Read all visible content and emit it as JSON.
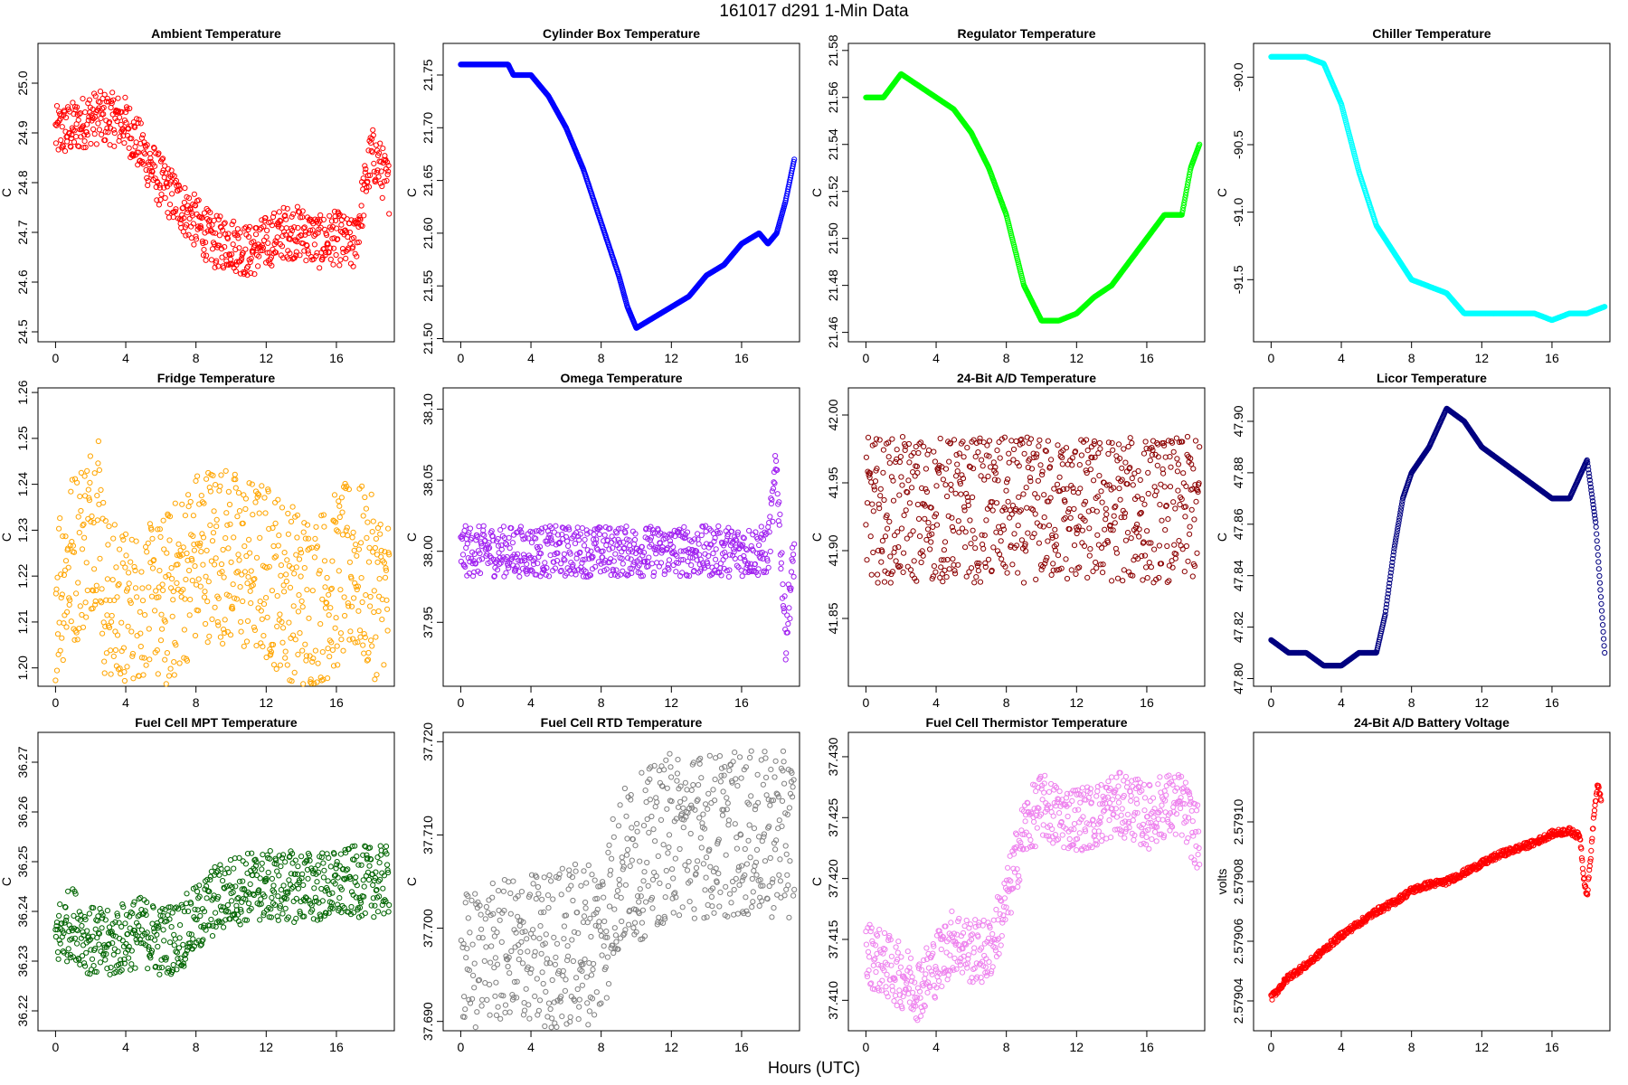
{
  "figure": {
    "title": "161017   d291   1-Min Data",
    "xlabel": "Hours (UTC)"
  },
  "chart_data": [
    {
      "type": "scatter",
      "title": "Ambient Temperature",
      "ylabel": "C",
      "color": "#ff0000",
      "xlim": [
        -1,
        19.3
      ],
      "ylim": [
        24.48,
        25.08
      ],
      "xticks": [
        0,
        4,
        8,
        12,
        16
      ],
      "xtick_labels": [
        "0",
        "4",
        "8",
        "12",
        "16"
      ],
      "yticks": [
        24.5,
        24.6,
        24.7,
        24.8,
        24.9,
        25.0
      ],
      "ytick_labels": [
        "24.5",
        "24.6",
        "24.7",
        "24.8",
        "24.9",
        "25.0"
      ],
      "series": [
        {
          "x": [
            0,
            1,
            2,
            3,
            4,
            5,
            6,
            7,
            8,
            9,
            10,
            11,
            12,
            13,
            14,
            15,
            16,
            17,
            18,
            18.5,
            19
          ],
          "y": [
            24.9,
            24.91,
            24.93,
            24.93,
            24.92,
            24.86,
            24.8,
            24.76,
            24.72,
            24.68,
            24.68,
            24.66,
            24.68,
            24.7,
            24.7,
            24.68,
            24.69,
            24.67,
            24.86,
            24.83,
            24.79
          ],
          "spread": 0.06
        }
      ]
    },
    {
      "type": "scatter",
      "title": "Cylinder Box Temperature",
      "ylabel": "C",
      "color": "#0000ff",
      "xlim": [
        -1,
        19.3
      ],
      "ylim": [
        21.497,
        21.78
      ],
      "xticks": [
        0,
        4,
        8,
        12,
        16
      ],
      "xtick_labels": [
        "0",
        "4",
        "8",
        "12",
        "16"
      ],
      "yticks": [
        21.5,
        21.55,
        21.6,
        21.65,
        21.7,
        21.75
      ],
      "ytick_labels": [
        "21.50",
        "21.55",
        "21.60",
        "21.65",
        "21.70",
        "21.75"
      ],
      "series": [
        {
          "x": [
            0,
            1,
            2,
            2.7,
            3,
            4,
            5,
            6,
            7,
            8,
            9,
            9.5,
            10,
            11,
            12,
            13,
            14,
            15,
            16,
            17,
            17.5,
            18,
            18.5,
            19
          ],
          "y": [
            21.76,
            21.76,
            21.76,
            21.76,
            21.75,
            21.75,
            21.73,
            21.7,
            21.66,
            21.61,
            21.56,
            21.53,
            21.51,
            21.52,
            21.53,
            21.54,
            21.56,
            21.57,
            21.59,
            21.6,
            21.59,
            21.6,
            21.63,
            21.67
          ],
          "spread": 0.0
        }
      ]
    },
    {
      "type": "scatter",
      "title": "Regulator Temperature",
      "ylabel": "C",
      "color": "#00ff00",
      "xlim": [
        -1,
        19.3
      ],
      "ylim": [
        21.456,
        21.583
      ],
      "xticks": [
        0,
        4,
        8,
        12,
        16
      ],
      "xtick_labels": [
        "0",
        "4",
        "8",
        "12",
        "16"
      ],
      "yticks": [
        21.46,
        21.48,
        21.5,
        21.52,
        21.54,
        21.56,
        21.58
      ],
      "ytick_labels": [
        "21.46",
        "21.48",
        "21.50",
        "21.52",
        "21.54",
        "21.56",
        "21.58"
      ],
      "series": [
        {
          "x": [
            0,
            1,
            2,
            3,
            4,
            5,
            6,
            7,
            8,
            9,
            10,
            11,
            12,
            13,
            14,
            15,
            16,
            17,
            18,
            18.5,
            19
          ],
          "y": [
            21.56,
            21.56,
            21.57,
            21.565,
            21.56,
            21.555,
            21.545,
            21.53,
            21.51,
            21.48,
            21.465,
            21.465,
            21.468,
            21.475,
            21.48,
            21.49,
            21.5,
            21.51,
            21.51,
            21.53,
            21.54
          ],
          "spread": 0.0
        }
      ]
    },
    {
      "type": "scatter",
      "title": "Chiller Temperature",
      "ylabel": "C",
      "color": "#00ffff",
      "xlim": [
        -1,
        19.3
      ],
      "ylim": [
        -91.96,
        -89.75
      ],
      "xticks": [
        0,
        4,
        8,
        12,
        16
      ],
      "xtick_labels": [
        "0",
        "4",
        "8",
        "12",
        "16"
      ],
      "yticks": [
        -91.5,
        -91.0,
        -90.5,
        -90.0
      ],
      "ytick_labels": [
        "-91.5",
        "-91.0",
        "-90.5",
        "-90.0"
      ],
      "series": [
        {
          "x": [
            0,
            1,
            2,
            3,
            4,
            5,
            6,
            7,
            8,
            9,
            10,
            11,
            12,
            13,
            14,
            15,
            16,
            17,
            18,
            19
          ],
          "y": [
            -89.85,
            -89.85,
            -89.85,
            -89.9,
            -90.2,
            -90.7,
            -91.1,
            -91.3,
            -91.5,
            -91.55,
            -91.6,
            -91.75,
            -91.75,
            -91.75,
            -91.75,
            -91.75,
            -91.8,
            -91.75,
            -91.75,
            -91.7
          ],
          "spread": 0.0
        }
      ]
    },
    {
      "type": "scatter",
      "title": "Fridge Temperature",
      "ylabel": "C",
      "color": "#ffa500",
      "xlim": [
        -1,
        19.3
      ],
      "ylim": [
        1.196,
        1.261
      ],
      "xticks": [
        0,
        4,
        8,
        12,
        16
      ],
      "xtick_labels": [
        "0",
        "4",
        "8",
        "12",
        "16"
      ],
      "yticks": [
        1.2,
        1.21,
        1.22,
        1.23,
        1.24,
        1.25,
        1.26
      ],
      "ytick_labels": [
        "1.20",
        "1.21",
        "1.22",
        "1.23",
        "1.24",
        "1.25",
        "1.26"
      ],
      "series": [
        {
          "x": [
            0,
            0.5,
            1,
            1.5,
            2,
            2.5,
            2.7,
            3,
            4,
            5,
            6,
            7,
            8,
            9,
            10,
            11,
            12,
            13,
            14,
            15,
            16,
            17,
            18,
            19
          ],
          "y": [
            1.217,
            1.221,
            1.224,
            1.227,
            1.231,
            1.236,
            1.22,
            1.213,
            1.211,
            1.211,
            1.213,
            1.218,
            1.224,
            1.226,
            1.224,
            1.222,
            1.221,
            1.218,
            1.215,
            1.215,
            1.219,
            1.222,
            1.218,
            1.214
          ],
          "spread": 0.022
        }
      ]
    },
    {
      "type": "scatter",
      "title": "Omega Temperature",
      "ylabel": "C",
      "color": "#a020f0",
      "xlim": [
        -1,
        19.3
      ],
      "ylim": [
        37.905,
        38.115
      ],
      "xticks": [
        0,
        4,
        8,
        12,
        16
      ],
      "xtick_labels": [
        "0",
        "4",
        "8",
        "12",
        "16"
      ],
      "yticks": [
        37.95,
        38.0,
        38.05,
        38.1
      ],
      "ytick_labels": [
        "37.95",
        "38.00",
        "38.05",
        "38.10"
      ],
      "series": [
        {
          "x": [
            0,
            2,
            4,
            6,
            8,
            10,
            12,
            14,
            16,
            17.5,
            18,
            18.5,
            19
          ],
          "y": [
            38.0,
            38.0,
            38.0,
            38.0,
            38.0,
            38.0,
            38.0,
            38.0,
            38.0,
            38.0,
            38.06,
            37.94,
            38.0
          ],
          "spread": 0.02
        }
      ]
    },
    {
      "type": "scatter",
      "title": "24-Bit A/D Temperature",
      "ylabel": "C",
      "color": "#8b0000",
      "xlim": [
        -1,
        19.3
      ],
      "ylim": [
        41.8,
        42.02
      ],
      "xticks": [
        0,
        4,
        8,
        12,
        16
      ],
      "xtick_labels": [
        "0",
        "4",
        "8",
        "12",
        "16"
      ],
      "yticks": [
        41.85,
        41.9,
        41.95,
        42.0
      ],
      "ytick_labels": [
        "41.85",
        "41.90",
        "41.95",
        "42.00"
      ],
      "series": [
        {
          "x": [
            0,
            4,
            8,
            12,
            16,
            18,
            19
          ],
          "y": [
            41.93,
            41.93,
            41.93,
            41.93,
            41.93,
            41.93,
            41.93
          ],
          "spread": 0.06
        }
      ]
    },
    {
      "type": "scatter",
      "title": "Licor Temperature",
      "ylabel": "C",
      "color": "#000080",
      "xlim": [
        -1,
        19.3
      ],
      "ylim": [
        47.797,
        47.913
      ],
      "xticks": [
        0,
        4,
        8,
        12,
        16
      ],
      "xtick_labels": [
        "0",
        "4",
        "8",
        "12",
        "16"
      ],
      "yticks": [
        47.8,
        47.82,
        47.84,
        47.86,
        47.88,
        47.9
      ],
      "ytick_labels": [
        "47.80",
        "47.82",
        "47.84",
        "47.86",
        "47.88",
        "47.90"
      ],
      "series": [
        {
          "x": [
            0,
            1,
            2,
            3,
            4,
            5,
            6,
            6.5,
            7,
            7.5,
            8,
            9,
            10,
            11,
            12,
            13,
            14,
            15,
            16,
            17,
            18,
            18.5,
            19
          ],
          "y": [
            47.815,
            47.81,
            47.81,
            47.805,
            47.805,
            47.81,
            47.81,
            47.825,
            47.85,
            47.87,
            47.88,
            47.89,
            47.905,
            47.9,
            47.89,
            47.885,
            47.88,
            47.875,
            47.87,
            47.87,
            47.885,
            47.86,
            47.81
          ],
          "spread": 0.0
        }
      ]
    },
    {
      "type": "scatter",
      "title": "Fuel Cell MPT Temperature",
      "ylabel": "C",
      "color": "#006400",
      "xlim": [
        -1,
        19.3
      ],
      "ylim": [
        36.216,
        36.276
      ],
      "xticks": [
        0,
        4,
        8,
        12,
        16
      ],
      "xtick_labels": [
        "0",
        "4",
        "8",
        "12",
        "16"
      ],
      "yticks": [
        36.22,
        36.23,
        36.24,
        36.25,
        36.26,
        36.27
      ],
      "ytick_labels": [
        "36.22",
        "36.23",
        "36.24",
        "36.25",
        "36.26",
        "36.27"
      ],
      "series": [
        {
          "x": [
            0,
            1,
            2,
            3,
            4,
            5,
            6,
            7,
            8,
            9,
            10,
            11,
            12,
            13,
            14,
            15,
            16,
            17,
            18,
            19
          ],
          "y": [
            36.235,
            36.238,
            36.234,
            36.233,
            36.235,
            36.236,
            36.234,
            36.235,
            36.238,
            36.242,
            36.244,
            36.245,
            36.245,
            36.245,
            36.245,
            36.245,
            36.245,
            36.246,
            36.246,
            36.246
          ],
          "spread": 0.008
        }
      ]
    },
    {
      "type": "scatter",
      "title": "Fuel Cell RTD Temperature",
      "ylabel": "C",
      "color": "#808080",
      "xlim": [
        -1,
        19.3
      ],
      "ylim": [
        37.689,
        37.721
      ],
      "xticks": [
        0,
        4,
        8,
        12,
        16
      ],
      "xtick_labels": [
        "0",
        "4",
        "8",
        "12",
        "16"
      ],
      "yticks": [
        37.69,
        37.7,
        37.71,
        37.72
      ],
      "ytick_labels": [
        "37.690",
        "37.700",
        "37.710",
        "37.720"
      ],
      "series": [
        {
          "x": [
            0,
            4,
            8,
            9,
            12,
            16,
            19
          ],
          "y": [
            37.695,
            37.697,
            37.699,
            37.706,
            37.71,
            37.71,
            37.71
          ],
          "spread": 0.01
        }
      ]
    },
    {
      "type": "scatter",
      "title": "Fuel Cell Thermistor Temperature",
      "ylabel": "C",
      "color": "#ee82ee",
      "xlim": [
        -1,
        19.3
      ],
      "ylim": [
        37.4075,
        37.432
      ],
      "xticks": [
        0,
        4,
        8,
        12,
        16
      ],
      "xtick_labels": [
        "0",
        "4",
        "8",
        "12",
        "16"
      ],
      "yticks": [
        37.41,
        37.415,
        37.42,
        37.425,
        37.43
      ],
      "ytick_labels": [
        "37.410",
        "37.415",
        "37.420",
        "37.425",
        "37.430"
      ],
      "series": [
        {
          "x": [
            0,
            1,
            2,
            3,
            4,
            5,
            6,
            7,
            8,
            9,
            10,
            11,
            12,
            13,
            14,
            15,
            16,
            17,
            18,
            19
          ],
          "y": [
            37.414,
            37.413,
            37.412,
            37.411,
            37.413,
            37.415,
            37.414,
            37.414,
            37.418,
            37.424,
            37.426,
            37.425,
            37.425,
            37.425,
            37.426,
            37.426,
            37.425,
            37.426,
            37.426,
            37.423
          ],
          "spread": 0.003
        }
      ]
    },
    {
      "type": "line",
      "title": "24-Bit A/D Battery Voltage",
      "ylabel": "volts",
      "color": "#ff0000",
      "xlim": [
        -1,
        19.3
      ],
      "ylim": [
        2.57903,
        2.57913
      ],
      "xticks": [
        0,
        4,
        8,
        12,
        16
      ],
      "xtick_labels": [
        "0",
        "4",
        "8",
        "12",
        "16"
      ],
      "yticks": [
        2.57904,
        2.57906,
        2.57908,
        2.5791
      ],
      "ytick_labels": [
        "2.57904",
        "2.57906",
        "2.57908",
        "2.57910"
      ],
      "series": [
        {
          "x": [
            0,
            1,
            2,
            3,
            4,
            5,
            6,
            7,
            8,
            9,
            10,
            11,
            12,
            13,
            14,
            15,
            16,
            17,
            17.6,
            17.8,
            18,
            18.2,
            18.4,
            18.6,
            18.8
          ],
          "y": [
            2.579041,
            2.579048,
            2.579052,
            2.579057,
            2.579062,
            2.579066,
            2.57907,
            2.579073,
            2.579077,
            2.579079,
            2.57908,
            2.579083,
            2.579086,
            2.579089,
            2.579091,
            2.579093,
            2.579096,
            2.579097,
            2.579095,
            2.579082,
            2.579075,
            2.579088,
            2.579103,
            2.579112,
            2.579108
          ],
          "spread": 1.2e-06
        }
      ]
    }
  ]
}
